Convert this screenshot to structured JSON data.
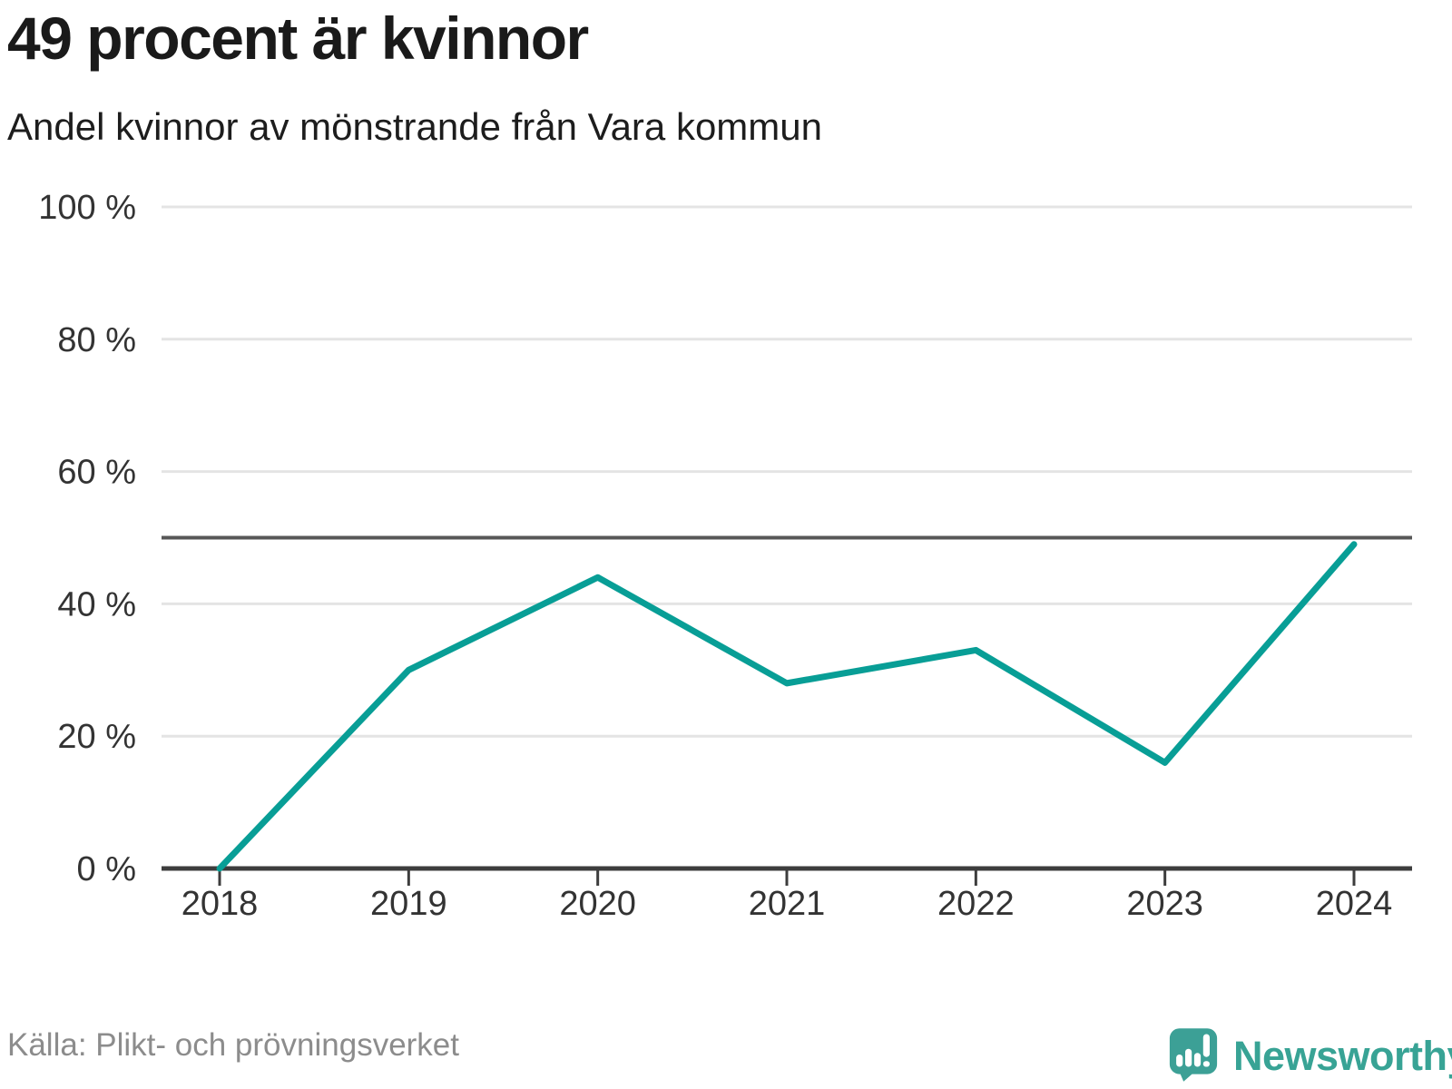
{
  "header": {
    "title": "49 procent är kvinnor",
    "subtitle": "Andel kvinnor av mönstrande från Vara kommun"
  },
  "footer": {
    "source": "Källa: Plikt- och prövningsverket",
    "brand": "Newsworthy"
  },
  "colors": {
    "line": "#089e96",
    "grid": "#e4e4e4",
    "reference_line": "#575757",
    "axis": "#3d3d3d",
    "tick_label": "#333333",
    "title": "#1a1a1a",
    "source": "#8c8c8c",
    "brand": "#38a395"
  },
  "chart_data": {
    "type": "line",
    "title": "49 procent är kvinnor",
    "subtitle": "Andel kvinnor av mönstrande från Vara kommun",
    "x": [
      2018,
      2019,
      2020,
      2021,
      2022,
      2023,
      2024
    ],
    "series": [
      {
        "name": "Andel kvinnor av mönstrande",
        "values": [
          0,
          30,
          44,
          28,
          33,
          16,
          49
        ]
      }
    ],
    "unit": "%",
    "ylim": [
      0,
      100
    ],
    "yticks": [
      0,
      20,
      40,
      60,
      80,
      100
    ],
    "ytick_suffix": " %",
    "reference_line": 50,
    "grid": true,
    "legend": "none",
    "source": "Källa: Plikt- och prövningsverket"
  }
}
